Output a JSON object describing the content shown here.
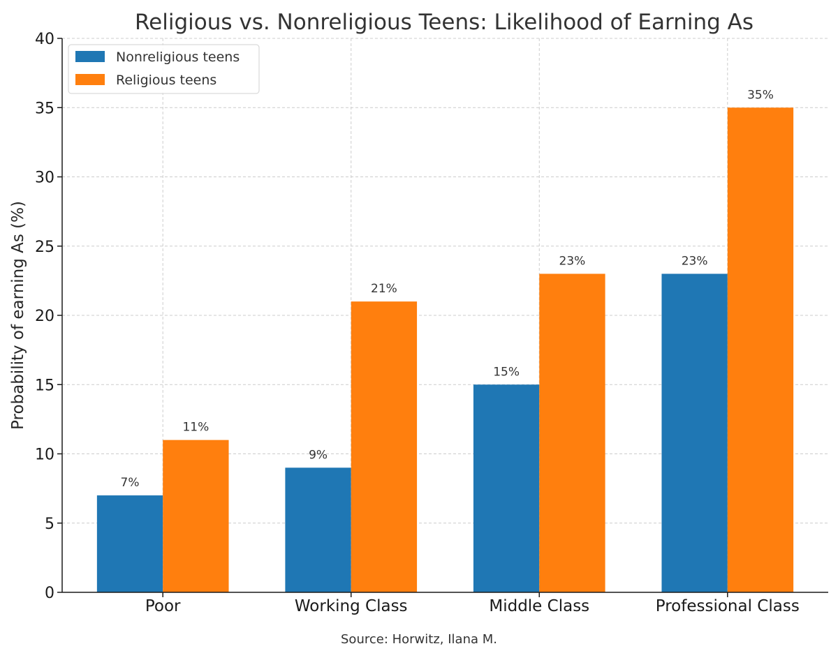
{
  "chart_data": {
    "type": "bar",
    "title": "Religious vs. Nonreligious Teens: Likelihood of Earning As",
    "xlabel": "",
    "ylabel": "Probability of earning As (%)",
    "categories": [
      "Poor",
      "Working Class",
      "Middle Class",
      "Professional Class"
    ],
    "series": [
      {
        "name": "Nonreligious teens",
        "color": "#1f77b4",
        "values": [
          7,
          9,
          15,
          23
        ],
        "labels": [
          "7%",
          "9%",
          "15%",
          "23%"
        ]
      },
      {
        "name": "Religious teens",
        "color": "#ff7f0e",
        "values": [
          11,
          21,
          23,
          35
        ],
        "labels": [
          "11%",
          "21%",
          "23%",
          "35%"
        ]
      }
    ],
    "ylim": [
      0,
      40
    ],
    "yticks": [
      0,
      5,
      10,
      15,
      20,
      25,
      30,
      35,
      40
    ],
    "grid": true,
    "legend_position": "top-left",
    "source": "Source: Horwitz, Ilana M."
  }
}
